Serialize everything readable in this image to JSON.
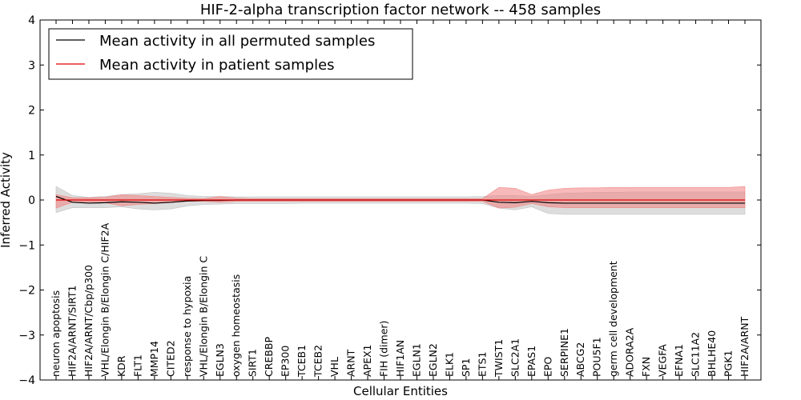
{
  "chart_data": {
    "type": "line",
    "title": "HIF-2-alpha transcription factor network -- 458 samples",
    "xlabel": "Cellular Entities",
    "ylabel": "Inferred Activity",
    "ylim": [
      -4,
      4
    ],
    "yticks": [
      "−4",
      "−3",
      "−2",
      "−1",
      "0",
      "1",
      "2",
      "3",
      "4"
    ],
    "legend_position": "top-left",
    "colors": {
      "permuted": "#000000",
      "patient": "#e00000",
      "permuted_band": "#bbbbbb",
      "patient_band": "#f08080"
    },
    "categories": [
      "neuron apoptosis",
      "HIF2A/ARNT/SIRT1",
      "HIF2A/ARNT/Cbp/p300",
      "VHL/Elongin B/Elongin C/HIF2A",
      "KDR",
      "FLT1",
      "MMP14",
      "CITED2",
      "response to hypoxia",
      "VHL/Elongin B/Elongin C",
      "EGLN3",
      "oxygen homeostasis",
      "SIRT1",
      "CREBBP",
      "EP300",
      "TCEB1",
      "TCEB2",
      "VHL",
      "ARNT",
      "APEX1",
      "FIH (dimer)",
      "HIF1AN",
      "EGLN1",
      "EGLN2",
      "ELK1",
      "SP1",
      "ETS1",
      "TWIST1",
      "SLC2A1",
      "EPAS1",
      "EPO",
      "SERPINE1",
      "ABCG2",
      "POU5F1",
      "germ cell development",
      "ADORA2A",
      "FXN",
      "VEGFA",
      "EFNA1",
      "SLC11A2",
      "BHLHE40",
      "PGK1",
      "HIF2A/ARNT"
    ],
    "series": [
      {
        "name": "Mean activity in all permuted samples",
        "values": [
          0.08,
          -0.05,
          -0.07,
          -0.06,
          -0.04,
          -0.05,
          -0.07,
          -0.05,
          -0.02,
          -0.01,
          -0.01,
          0.0,
          0.0,
          0.0,
          0.0,
          0.0,
          0.0,
          0.0,
          0.0,
          0.0,
          0.0,
          0.0,
          0.0,
          0.0,
          0.0,
          0.0,
          0.0,
          -0.05,
          -0.06,
          -0.03,
          -0.06,
          -0.07,
          -0.07,
          -0.07,
          -0.07,
          -0.07,
          -0.07,
          -0.07,
          -0.07,
          -0.07,
          -0.07,
          -0.07,
          -0.07
        ],
        "band_upper": [
          0.3,
          0.1,
          0.06,
          0.08,
          0.12,
          0.14,
          0.17,
          0.15,
          0.1,
          0.08,
          0.08,
          0.07,
          0.07,
          0.07,
          0.07,
          0.07,
          0.07,
          0.07,
          0.07,
          0.07,
          0.07,
          0.07,
          0.07,
          0.07,
          0.07,
          0.07,
          0.08,
          0.1,
          0.1,
          0.08,
          0.12,
          0.15,
          0.16,
          0.17,
          0.17,
          0.18,
          0.18,
          0.18,
          0.18,
          0.18,
          0.18,
          0.18,
          0.18
        ],
        "band_lower": [
          -0.28,
          -0.17,
          -0.17,
          -0.17,
          -0.15,
          -0.2,
          -0.22,
          -0.2,
          -0.13,
          -0.1,
          -0.09,
          -0.08,
          -0.08,
          -0.08,
          -0.08,
          -0.07,
          -0.07,
          -0.07,
          -0.07,
          -0.07,
          -0.07,
          -0.07,
          -0.07,
          -0.07,
          -0.07,
          -0.07,
          -0.08,
          -0.18,
          -0.22,
          -0.15,
          -0.3,
          -0.32,
          -0.32,
          -0.32,
          -0.32,
          -0.32,
          -0.32,
          -0.32,
          -0.32,
          -0.32,
          -0.32,
          -0.32,
          -0.32
        ]
      },
      {
        "name": "Mean activity in patient samples",
        "values": [
          0.0,
          0.0,
          0.0,
          0.0,
          0.0,
          0.0,
          0.0,
          0.0,
          0.0,
          0.0,
          0.0,
          0.0,
          0.0,
          0.0,
          0.0,
          0.0,
          0.0,
          0.0,
          0.0,
          0.0,
          0.0,
          0.0,
          0.0,
          0.0,
          0.0,
          0.0,
          0.0,
          0.0,
          0.0,
          0.0,
          0.0,
          0.0,
          0.0,
          0.0,
          0.0,
          0.0,
          0.0,
          0.0,
          0.0,
          0.0,
          0.0,
          0.0,
          0.0
        ],
        "band_upper": [
          0.12,
          0.05,
          0.05,
          0.06,
          0.12,
          0.1,
          0.08,
          0.06,
          0.04,
          0.03,
          0.08,
          0.04,
          0.03,
          0.03,
          0.03,
          0.03,
          0.03,
          0.03,
          0.03,
          0.03,
          0.03,
          0.03,
          0.03,
          0.03,
          0.03,
          0.03,
          0.03,
          0.28,
          0.26,
          0.12,
          0.22,
          0.26,
          0.27,
          0.27,
          0.28,
          0.28,
          0.28,
          0.28,
          0.28,
          0.28,
          0.28,
          0.28,
          0.3
        ],
        "band_lower": [
          -0.18,
          -0.05,
          -0.05,
          -0.06,
          -0.13,
          -0.1,
          -0.08,
          -0.06,
          -0.03,
          -0.03,
          -0.05,
          -0.03,
          -0.03,
          -0.03,
          -0.03,
          -0.03,
          -0.03,
          -0.03,
          -0.03,
          -0.03,
          -0.03,
          -0.03,
          -0.03,
          -0.03,
          -0.03,
          -0.03,
          -0.03,
          -0.18,
          -0.16,
          -0.08,
          -0.15,
          -0.17,
          -0.17,
          -0.17,
          -0.17,
          -0.17,
          -0.17,
          -0.17,
          -0.17,
          -0.17,
          -0.17,
          -0.17,
          -0.17
        ]
      }
    ]
  }
}
